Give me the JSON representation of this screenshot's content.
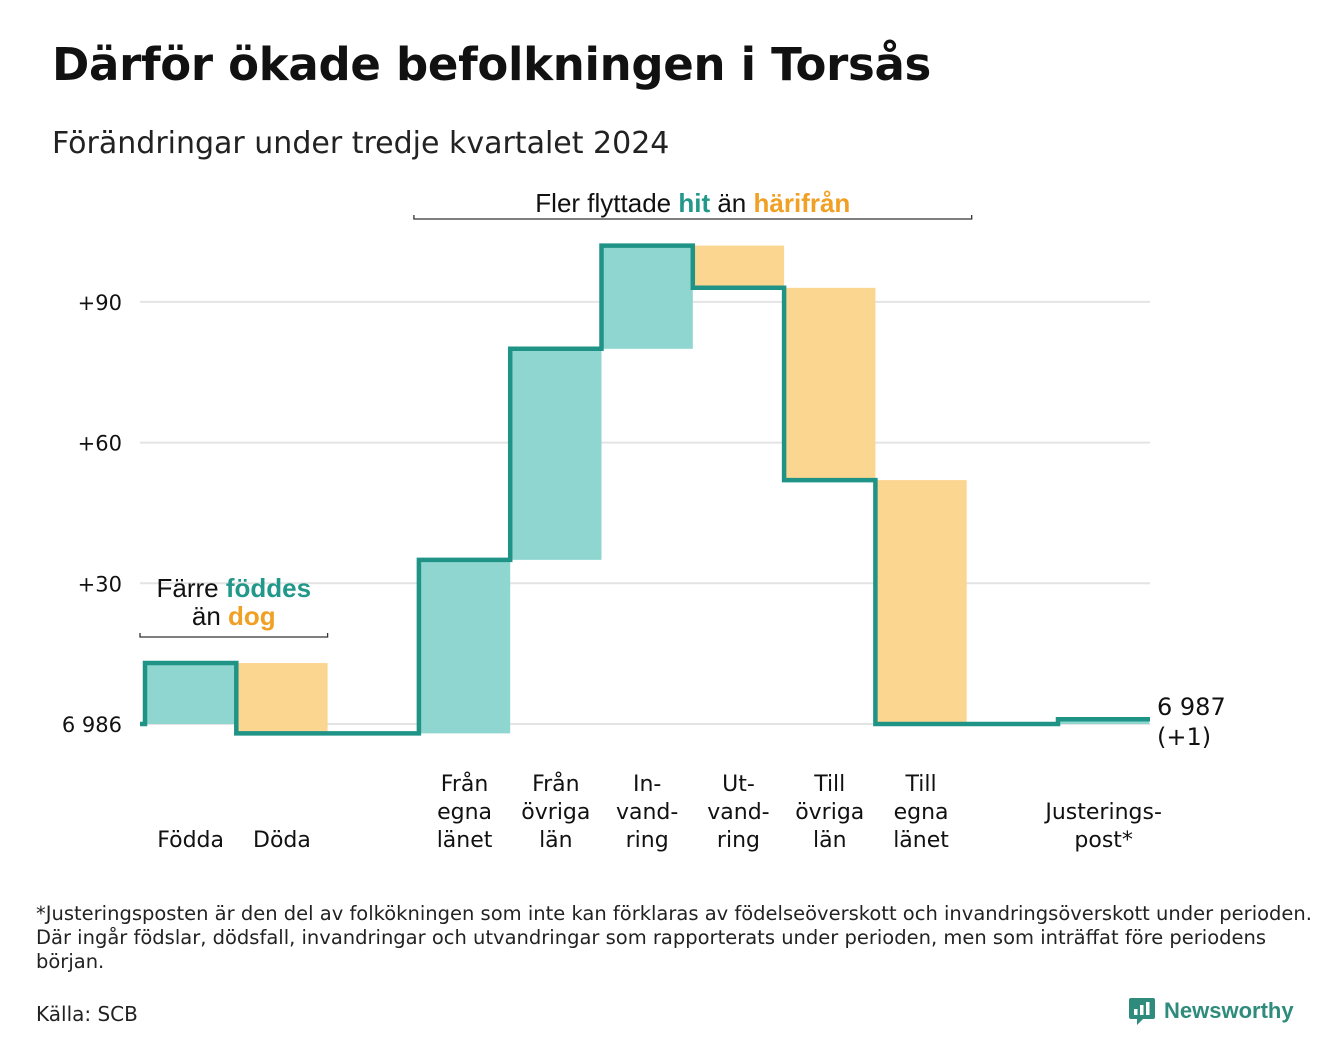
{
  "title": "Därför ökade befolkningen i Torsås",
  "subtitle": "Förändringar under tredje kvartalet 2024",
  "colors": {
    "increase": "#8ed6cf",
    "decrease": "#fbd690",
    "line": "#1f9486",
    "increase_text": "#21988a",
    "decrease_text": "#f0a024",
    "grid": "#e4e4e4"
  },
  "chart_data": {
    "type": "waterfall",
    "title": "Därför ökade befolkningen i Torsås",
    "subtitle": "Förändringar under tredje kvartalet 2024",
    "baseline": 6986,
    "baseline_label": "6 986",
    "y_ticks": [
      {
        "value": 30,
        "label": "+30"
      },
      {
        "value": 60,
        "label": "+60"
      },
      {
        "value": 90,
        "label": "+90"
      }
    ],
    "ylim": [
      -8,
      108
    ],
    "steps": [
      {
        "label": "Födda",
        "change": 13,
        "kind": "increase",
        "slot": 0
      },
      {
        "label": "Döda",
        "change": -15,
        "kind": "decrease",
        "slot": 1
      },
      {
        "label": "Från egna länet",
        "change": 37,
        "kind": "increase",
        "slot": 3
      },
      {
        "label": "Från övriga län",
        "change": 45,
        "kind": "increase",
        "slot": 4
      },
      {
        "label": "In-vandring",
        "change": 22,
        "kind": "increase",
        "slot": 5
      },
      {
        "label": "Ut-vandring",
        "change": -9,
        "kind": "decrease",
        "slot": 6
      },
      {
        "label": "Till övriga län",
        "change": -41,
        "kind": "decrease",
        "slot": 7
      },
      {
        "label": "Till egna länet",
        "change": -52,
        "kind": "decrease",
        "slot": 8
      },
      {
        "label": "Justerings-post*",
        "change": 1,
        "kind": "increase",
        "slot": 10
      }
    ],
    "category_labels": [
      {
        "slot": 0,
        "lines": [
          "Födda"
        ]
      },
      {
        "slot": 1,
        "lines": [
          "Döda"
        ]
      },
      {
        "slot": 3,
        "lines": [
          "Från",
          "egna",
          "länet"
        ]
      },
      {
        "slot": 4,
        "lines": [
          "Från",
          "övriga",
          "län"
        ]
      },
      {
        "slot": 5,
        "lines": [
          "In-",
          "vand-",
          "ring"
        ]
      },
      {
        "slot": 6,
        "lines": [
          "Ut-",
          "vand-",
          "ring"
        ]
      },
      {
        "slot": 7,
        "lines": [
          "Till",
          "övriga",
          "län"
        ]
      },
      {
        "slot": 8,
        "lines": [
          "Till",
          "egna",
          "länet"
        ]
      },
      {
        "slot": 10,
        "lines": [
          "Justerings-",
          "post*"
        ]
      }
    ],
    "end_value": 6987,
    "end_label_lines": [
      "6 987",
      "(+1)"
    ],
    "annotations": [
      {
        "span_slots": [
          0,
          1
        ],
        "lines": [
          [
            {
              "text": "Färre",
              "style": "normal"
            },
            {
              "text": "föddes",
              "style": "increase"
            }
          ],
          [
            {
              "text": "än",
              "style": "normal"
            },
            {
              "text": "dog",
              "style": "decrease"
            }
          ]
        ]
      },
      {
        "span_slots": [
          3,
          8
        ],
        "lines": [
          [
            {
              "text": "Fler flyttade",
              "style": "normal"
            },
            {
              "text": "hit",
              "style": "increase"
            },
            {
              "text": "än",
              "style": "normal"
            },
            {
              "text": "härifrån",
              "style": "decrease"
            }
          ]
        ]
      }
    ]
  },
  "footnote": "*Justeringsposten är den del av folkökningen som inte kan förklaras av födelseöverskott och invandringsöverskott under perioden. Där ingår födslar, dödsfall, invandringar och utvandringar som rapporterats under perioden, men som inträffat före periodens början.",
  "source": "Källa: SCB",
  "brand": {
    "name": "Newsworthy",
    "icon": "newsworthy-logo-icon"
  }
}
